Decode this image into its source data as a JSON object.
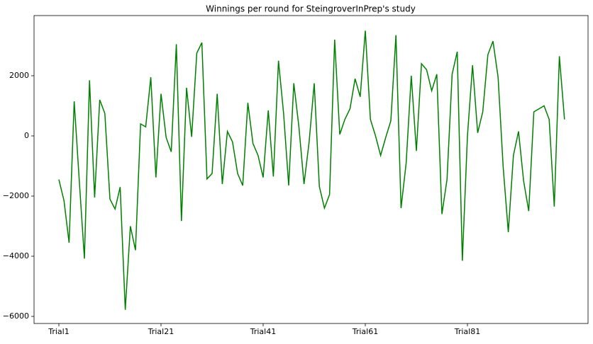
{
  "chart_data": {
    "type": "line",
    "title": "Winnings per round for SteingroverInPrep's study",
    "categories": [
      "Trial1",
      null,
      null,
      null,
      null,
      null,
      null,
      null,
      null,
      null,
      null,
      null,
      null,
      null,
      null,
      null,
      null,
      null,
      null,
      null,
      "Trial21",
      null,
      null,
      null,
      null,
      null,
      null,
      null,
      null,
      null,
      null,
      null,
      null,
      null,
      null,
      null,
      null,
      null,
      null,
      null,
      "Trial41",
      null,
      null,
      null,
      null,
      null,
      null,
      null,
      null,
      null,
      null,
      null,
      null,
      null,
      null,
      null,
      null,
      null,
      null,
      null,
      "Trial61",
      null,
      null,
      null,
      null,
      null,
      null,
      null,
      null,
      null,
      null,
      null,
      null,
      null,
      null,
      null,
      null,
      null,
      null,
      null,
      "Trial81",
      null,
      null,
      null,
      null,
      null,
      null,
      null,
      null,
      null,
      null,
      null,
      null,
      null,
      null,
      null,
      null,
      null,
      null,
      null
    ],
    "series": [
      {
        "color": "#008000",
        "values": [
          -1450,
          -2150,
          -3550,
          1150,
          -1500,
          -4080,
          1850,
          -2050,
          1200,
          750,
          -2100,
          -2430,
          -1700,
          -5780,
          -3000,
          -3800,
          400,
          300,
          1950,
          -1380,
          1400,
          -50,
          -530,
          3050,
          -2830,
          1600,
          -30,
          2750,
          3100,
          -1430,
          -1250,
          1400,
          -1600,
          150,
          -200,
          -1250,
          -1650,
          1100,
          -250,
          -650,
          -1380,
          850,
          -1350,
          2500,
          750,
          -1650,
          1750,
          300,
          -1600,
          -200,
          1750,
          -1680,
          -2400,
          -1950,
          3200,
          50,
          550,
          900,
          1900,
          1300,
          3500,
          550,
          0,
          -650,
          -50,
          500,
          3350,
          -2400,
          -900,
          2000,
          -500,
          2400,
          2200,
          1500,
          2050,
          -2600,
          -1450,
          2050,
          2800,
          -4150,
          0,
          2350,
          100,
          800,
          2700,
          3150,
          1950,
          -1050,
          -3200,
          -650,
          150,
          -1500,
          -2500,
          800,
          900,
          1000,
          550,
          -2350,
          2650,
          550
        ]
      }
    ],
    "ylim": [
      -6235,
      4000
    ],
    "yticks": [
      {
        "value": -6000,
        "label": "−6000"
      },
      {
        "value": -4000,
        "label": "−4000"
      },
      {
        "value": -2000,
        "label": "−2000"
      },
      0,
      2000
    ]
  }
}
